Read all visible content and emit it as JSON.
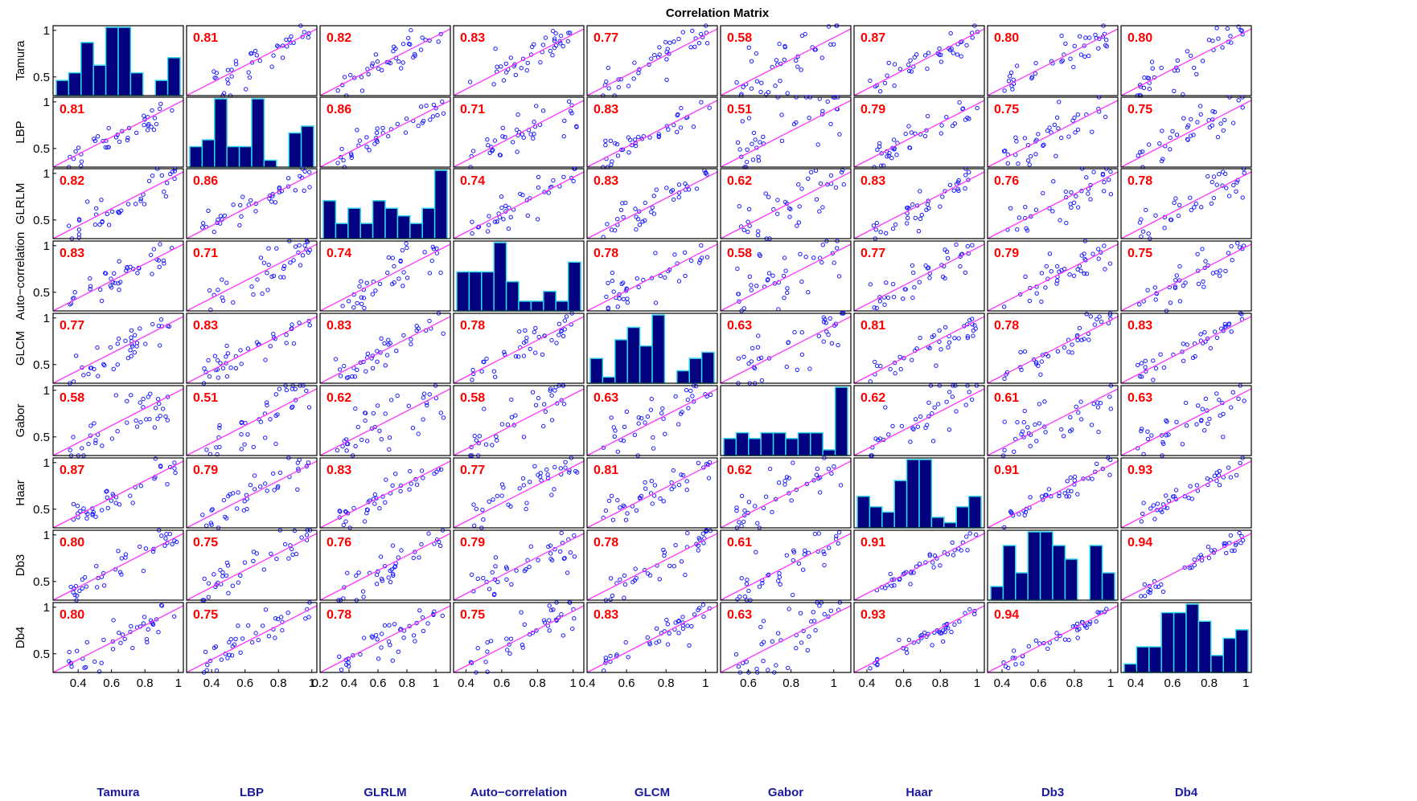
{
  "chart_data": {
    "type": "scatter-matrix",
    "title": "Correlation Matrix",
    "variables": [
      "Tamura",
      "LBP",
      "GLRLM",
      "Auto−correlation",
      "GLCM",
      "Gabor",
      "Haar",
      "Db3",
      "Db4"
    ],
    "xlabels": [
      "Tamura",
      "LBP",
      "GLRLM",
      "Auto−correlation",
      "GLCM",
      "Gabor",
      "Haar",
      "Db3",
      "Db4"
    ],
    "correlations": [
      [
        "",
        "0.81",
        "0.82",
        "0.83",
        "0.77",
        "0.58",
        "0.87",
        "0.80",
        "0.80"
      ],
      [
        "0.81",
        "",
        "0.86",
        "0.71",
        "0.83",
        "0.51",
        "0.79",
        "0.75",
        "0.75"
      ],
      [
        "0.82",
        "0.86",
        "",
        "0.74",
        "0.83",
        "0.62",
        "0.83",
        "0.76",
        "0.78"
      ],
      [
        "0.83",
        "0.71",
        "0.74",
        "",
        "0.78",
        "0.58",
        "0.77",
        "0.79",
        "0.75"
      ],
      [
        "0.77",
        "0.83",
        "0.83",
        "0.78",
        "",
        "0.63",
        "0.81",
        "0.78",
        "0.83"
      ],
      [
        "0.58",
        "0.51",
        "0.62",
        "0.58",
        "0.63",
        "",
        "0.62",
        "0.61",
        "0.63"
      ],
      [
        "0.87",
        "0.79",
        "0.83",
        "0.77",
        "0.81",
        "0.62",
        "",
        "0.91",
        "0.93"
      ],
      [
        "0.80",
        "0.75",
        "0.76",
        "0.79",
        "0.78",
        "0.61",
        "0.91",
        "",
        "0.94"
      ],
      [
        "0.80",
        "0.75",
        "0.78",
        "0.75",
        "0.83",
        "0.63",
        "0.93",
        "0.94",
        ""
      ]
    ],
    "x_ranges": [
      [
        0.25,
        1.03
      ],
      [
        0.25,
        1.03
      ],
      [
        0.2,
        1.1
      ],
      [
        0.33,
        1.06
      ],
      [
        0.4,
        1.06
      ],
      [
        0.47,
        1.08
      ],
      [
        0.33,
        1.04
      ],
      [
        0.32,
        1.04
      ],
      [
        0.32,
        1.03
      ]
    ],
    "y_range": [
      0.3,
      1.05
    ],
    "y_ticks": [
      "0.5",
      "1"
    ],
    "x_ticks": [
      [
        "0.4",
        "0.6",
        "0.8",
        "1"
      ],
      [
        "0.4",
        "0.6",
        "0.8",
        "1"
      ],
      [
        "0.2",
        "0.4",
        "0.6",
        "0.8",
        "1"
      ],
      [
        "0.4",
        "0.6",
        "0.8",
        "1"
      ],
      [
        "0.4",
        "0.6",
        "0.8",
        "1"
      ],
      [
        "0.6",
        "0.8",
        "1"
      ],
      [
        "0.4",
        "0.6",
        "0.8",
        "1"
      ],
      [
        "0.4",
        "0.6",
        "0.8",
        "1"
      ],
      [
        "0.4",
        "0.6",
        "0.8",
        "1"
      ]
    ],
    "x_tick_values": [
      [
        0.4,
        0.6,
        0.8,
        1.0
      ],
      [
        0.4,
        0.6,
        0.8,
        1.0
      ],
      [
        0.2,
        0.4,
        0.6,
        0.8,
        1.0
      ],
      [
        0.4,
        0.6,
        0.8,
        1.0
      ],
      [
        0.4,
        0.6,
        0.8,
        1.0
      ],
      [
        0.6,
        0.8,
        1.0
      ],
      [
        0.4,
        0.6,
        0.8,
        1.0
      ],
      [
        0.4,
        0.6,
        0.8,
        1.0
      ],
      [
        0.4,
        0.6,
        0.8,
        1.0
      ]
    ],
    "histograms": [
      [
        2,
        3,
        7,
        4,
        9,
        9,
        3,
        0,
        2,
        5
      ],
      [
        3,
        4,
        10,
        3,
        3,
        10,
        1,
        0,
        5,
        6
      ],
      [
        5,
        2,
        4,
        2,
        5,
        4,
        3,
        2,
        4,
        9
      ],
      [
        4,
        4,
        4,
        7,
        3,
        1,
        1,
        2,
        1,
        5
      ],
      [
        4,
        1,
        7,
        9,
        6,
        11,
        0,
        2,
        4,
        5
      ],
      [
        3,
        4,
        3,
        4,
        4,
        3,
        4,
        4,
        1,
        12
      ],
      [
        6,
        4,
        3,
        9,
        13,
        13,
        2,
        1,
        4,
        6
      ],
      [
        1,
        4,
        2,
        5,
        5,
        4,
        3,
        0,
        4,
        2
      ],
      [
        1,
        3,
        3,
        7,
        7,
        8,
        6,
        2,
        4,
        5
      ]
    ],
    "scatter_points_per_panel": 40,
    "colors": {
      "marker": "#1a1aff",
      "fit_line": "#ff33ff",
      "corr_text": "#ff0000",
      "bar_fill": "#000080",
      "bar_edge": "#33d6e6",
      "var_label": "#1a1aa0"
    }
  }
}
